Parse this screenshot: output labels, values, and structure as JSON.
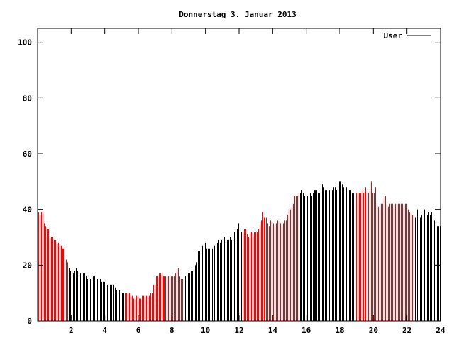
{
  "chart_data": {
    "type": "bar",
    "style": "impulses",
    "title": "Donnerstag 3. Januar 2013",
    "xlabel": "",
    "ylabel": "",
    "xlim": [
      0,
      24
    ],
    "ylim": [
      0,
      105
    ],
    "x_ticks": [
      "2",
      "4",
      "6",
      "8",
      "10",
      "12",
      "14",
      "16",
      "18",
      "20",
      "22",
      "24"
    ],
    "y_ticks": [
      "0",
      "20",
      "40",
      "60",
      "80",
      "100"
    ],
    "grid": false,
    "legend": {
      "placement": "top-right",
      "entries": [
        "User"
      ]
    },
    "sample_interval_hours": 0.08333,
    "color_segments": [
      {
        "from": 0,
        "to": 1.8,
        "color": "#ff0000"
      },
      {
        "from": 1.8,
        "to": 5.1,
        "color": "#000000"
      },
      {
        "from": 5.1,
        "to": 8.6,
        "color": "#ff0000"
      },
      {
        "from": 8.6,
        "to": 12.1,
        "color": "#000000"
      },
      {
        "from": 12.1,
        "to": 15.5,
        "color": "#ff0000"
      },
      {
        "from": 15.5,
        "to": 18.9,
        "color": "#000000"
      },
      {
        "from": 18.9,
        "to": 22.4,
        "color": "#ff0000"
      },
      {
        "from": 22.4,
        "to": 24,
        "color": "#000000"
      }
    ],
    "series": [
      {
        "name": "User",
        "values": [
          39,
          38,
          39,
          39,
          35,
          34,
          33,
          33,
          30,
          30,
          30,
          29,
          29,
          28,
          28,
          27,
          27,
          26,
          26,
          26,
          22,
          21,
          19,
          18,
          19,
          17,
          18,
          19,
          18,
          17,
          17,
          16,
          17,
          17,
          16,
          15,
          15,
          15,
          15,
          16,
          16,
          16,
          15,
          15,
          15,
          14,
          14,
          14,
          14,
          13,
          13,
          13,
          13,
          13,
          13,
          12,
          11,
          11,
          11,
          11,
          10,
          10,
          10,
          10,
          10,
          10,
          9,
          9,
          8,
          8,
          9,
          9,
          8,
          8,
          9,
          9,
          9,
          9,
          9,
          9,
          10,
          10,
          13,
          13,
          16,
          16,
          17,
          17,
          17,
          16,
          16,
          16,
          16,
          16,
          16,
          16,
          16,
          16,
          17,
          18,
          19,
          16,
          15,
          15,
          15,
          16,
          16,
          17,
          17,
          18,
          18,
          19,
          20,
          21,
          25,
          25,
          25,
          27,
          27,
          28,
          26,
          26,
          26,
          26,
          26,
          26,
          27,
          26,
          28,
          29,
          28,
          29,
          29,
          30,
          30,
          29,
          29,
          30,
          29,
          29,
          32,
          33,
          33,
          35,
          33,
          32,
          32,
          33,
          33,
          31,
          30,
          32,
          32,
          31,
          32,
          32,
          32,
          33,
          35,
          36,
          39,
          37,
          37,
          37,
          35,
          34,
          36,
          36,
          35,
          34,
          35,
          36,
          36,
          35,
          34,
          35,
          36,
          36,
          38,
          40,
          40,
          41,
          42,
          45,
          45,
          45,
          46,
          46,
          47,
          46,
          45,
          45,
          45,
          46,
          46,
          45,
          46,
          47,
          47,
          47,
          46,
          46,
          47,
          49,
          48,
          47,
          47,
          48,
          47,
          46,
          47,
          48,
          48,
          47,
          49,
          50,
          50,
          49,
          48,
          47,
          48,
          48,
          47,
          47,
          46,
          46,
          47,
          46,
          46,
          46,
          46,
          47,
          46,
          46,
          48,
          47,
          46,
          47,
          50,
          46,
          46,
          48,
          42,
          41,
          40,
          42,
          42,
          44,
          45,
          42,
          41,
          42,
          42,
          42,
          41,
          42,
          42,
          42,
          42,
          42,
          42,
          41,
          42,
          42,
          40,
          39,
          39,
          38,
          38,
          37,
          37,
          40,
          40,
          37,
          38,
          41,
          40,
          40,
          38,
          39,
          38,
          39,
          37,
          36,
          34,
          34,
          34,
          34
        ]
      }
    ]
  }
}
